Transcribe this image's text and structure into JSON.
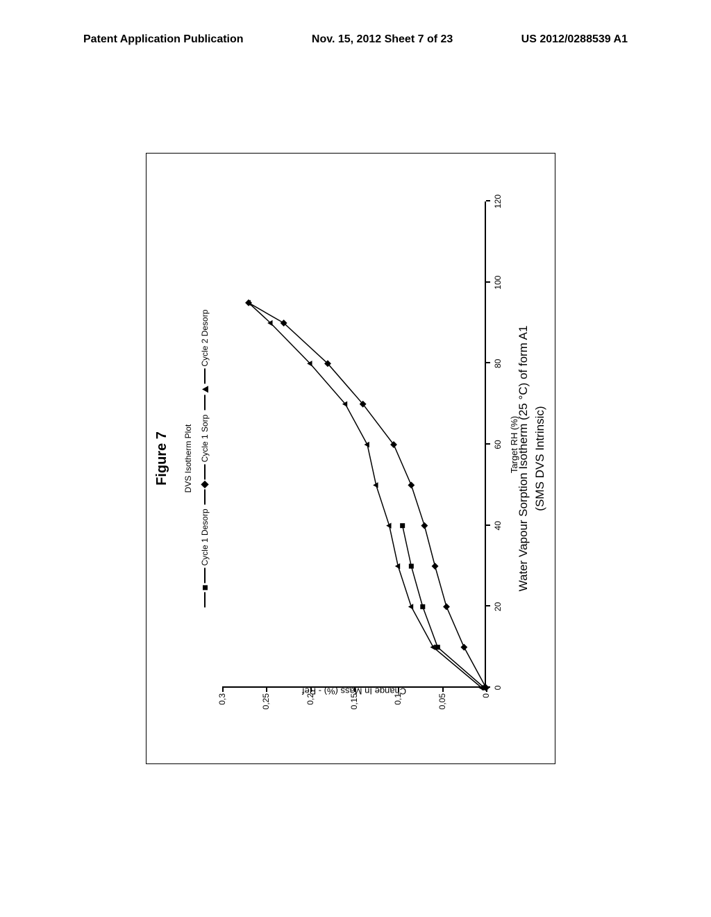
{
  "header": {
    "left": "Patent Application Publication",
    "center": "Nov. 15, 2012  Sheet 7 of 23",
    "right": "US 2012/0288539 A1"
  },
  "figure": {
    "title": "Figure 7",
    "plot_title": "DVS Isotherm Plot",
    "legend": {
      "series1": "Cycle 1 Desorp",
      "series2": "Cycle 1 Sorp",
      "series3": "Cycle 2 Desorp"
    },
    "xlabel": "Target RH (%)",
    "ylabel": "Change In Mass (%) - Ref",
    "caption_line1": "Water Vapour Sorption Isotherm (25 °C) of form A1",
    "caption_line2": "(SMS DVS Intrinsic)",
    "chart": {
      "type": "line",
      "xlim": [
        0,
        120
      ],
      "ylim": [
        0,
        0.3
      ],
      "xticks": [
        0,
        20,
        40,
        60,
        80,
        100,
        120
      ],
      "yticks": [
        0,
        0.05,
        0.1,
        0.15,
        0.2,
        0.25,
        0.3
      ],
      "ytick_labels": [
        "0",
        "0,05",
        "0,1",
        "0,15",
        "0,2",
        "0,25",
        "0,3"
      ],
      "line_color": "#000000",
      "line_width": 1.5,
      "marker_size": 7,
      "background_color": "#ffffff",
      "series": {
        "cycle1_desorp": {
          "marker": "square",
          "x": [
            0,
            10,
            20,
            30,
            40
          ],
          "y": [
            0.002,
            0.055,
            0.072,
            0.085,
            0.095
          ]
        },
        "cycle1_sorp": {
          "marker": "diamond",
          "x": [
            0,
            10,
            20,
            30,
            40,
            50,
            60,
            70,
            80,
            90,
            95
          ],
          "y": [
            0.0,
            0.025,
            0.045,
            0.058,
            0.07,
            0.085,
            0.105,
            0.14,
            0.18,
            0.23,
            0.27
          ]
        },
        "cycle2_desorp": {
          "marker": "triangle",
          "x": [
            0,
            10,
            20,
            30,
            40,
            50,
            60,
            70,
            80,
            90,
            95
          ],
          "y": [
            0.005,
            0.06,
            0.085,
            0.1,
            0.11,
            0.125,
            0.135,
            0.16,
            0.2,
            0.245,
            0.27
          ]
        }
      }
    }
  }
}
